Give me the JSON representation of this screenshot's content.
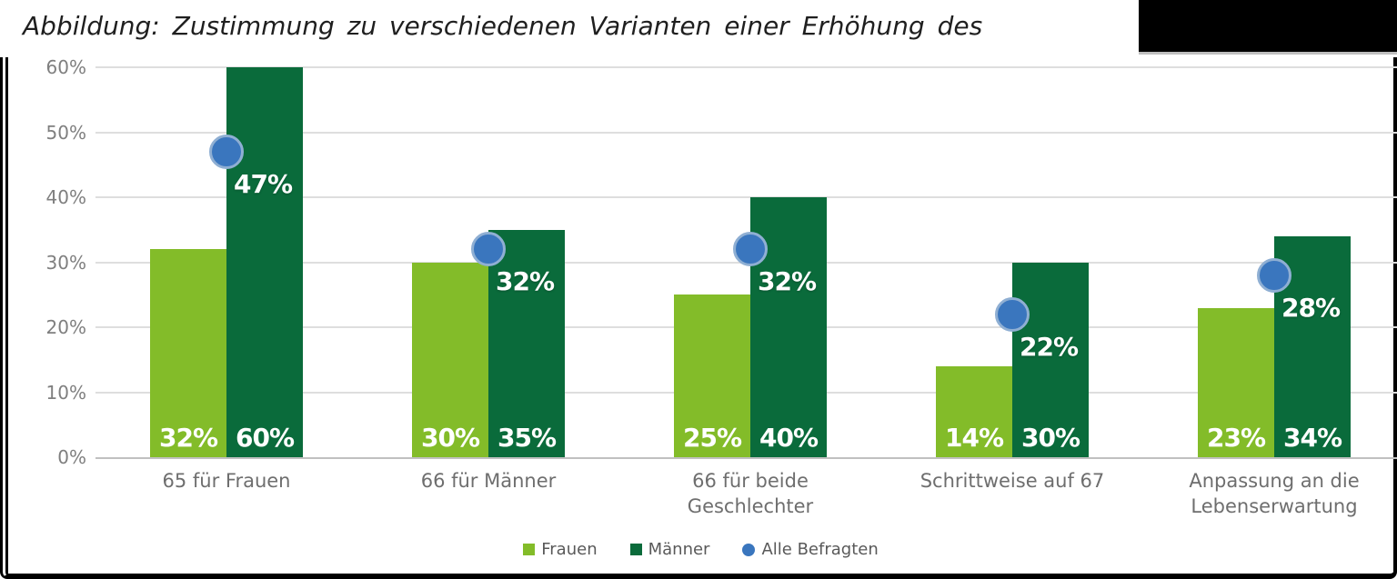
{
  "title": "Abbildung: Zustimmung zu verschiedenen Varianten einer Erhöhung des",
  "redaction_box": {
    "color": "#000000"
  },
  "colors": {
    "frauen": "#83bc29",
    "maenner": "#0a6b3b",
    "alle_fill": "#3a76be",
    "alle_ring": "#8fafd3",
    "grid": "#dedede",
    "axis": "#c0c0c0",
    "tick_text": "#7f7f7f",
    "category_text": "#6e6e6e",
    "legend_text": "#595959",
    "bar_label": "#ffffff",
    "frame": "#000000"
  },
  "chart_data": {
    "type": "bar",
    "title": "Abbildung: Zustimmung zu verschiedenen Varianten einer Erhöhung des",
    "categories": [
      "65 für Frauen",
      "66 für Männer",
      "66 für beide Geschlechter",
      "Schrittweise auf 67",
      "Anpassung an die Lebenserwartung"
    ],
    "series": [
      {
        "name": "Frauen",
        "type": "bar",
        "color_key": "frauen",
        "values": [
          32,
          30,
          25,
          14,
          23
        ],
        "labels": [
          "32%",
          "30%",
          "25%",
          "14%",
          "23%"
        ]
      },
      {
        "name": "Männer",
        "type": "bar",
        "color_key": "maenner",
        "values": [
          60,
          35,
          40,
          30,
          34
        ],
        "labels": [
          "60%",
          "35%",
          "40%",
          "30%",
          "34%"
        ]
      },
      {
        "name": "Alle Befragten",
        "type": "scatter",
        "color_key": "alle_fill",
        "values": [
          47,
          32,
          32,
          22,
          28
        ],
        "labels": [
          "47%",
          "32%",
          "32%",
          "22%",
          "28%"
        ]
      }
    ],
    "ylim": [
      0,
      60
    ],
    "yticks": [
      {
        "value": 0,
        "label": "0%"
      },
      {
        "value": 10,
        "label": "10%"
      },
      {
        "value": 20,
        "label": "20%"
      },
      {
        "value": 30,
        "label": "30%"
      },
      {
        "value": 40,
        "label": "40%"
      },
      {
        "value": 50,
        "label": "50%"
      },
      {
        "value": 60,
        "label": "60%"
      }
    ],
    "grid": true,
    "legend_position": "bottom"
  },
  "legend": {
    "items": [
      {
        "label": "Frauen",
        "marker": "square",
        "color_key": "frauen"
      },
      {
        "label": "Männer",
        "marker": "square",
        "color_key": "maenner"
      },
      {
        "label": "Alle Befragten",
        "marker": "circle",
        "color_key": "alle_fill"
      }
    ]
  }
}
